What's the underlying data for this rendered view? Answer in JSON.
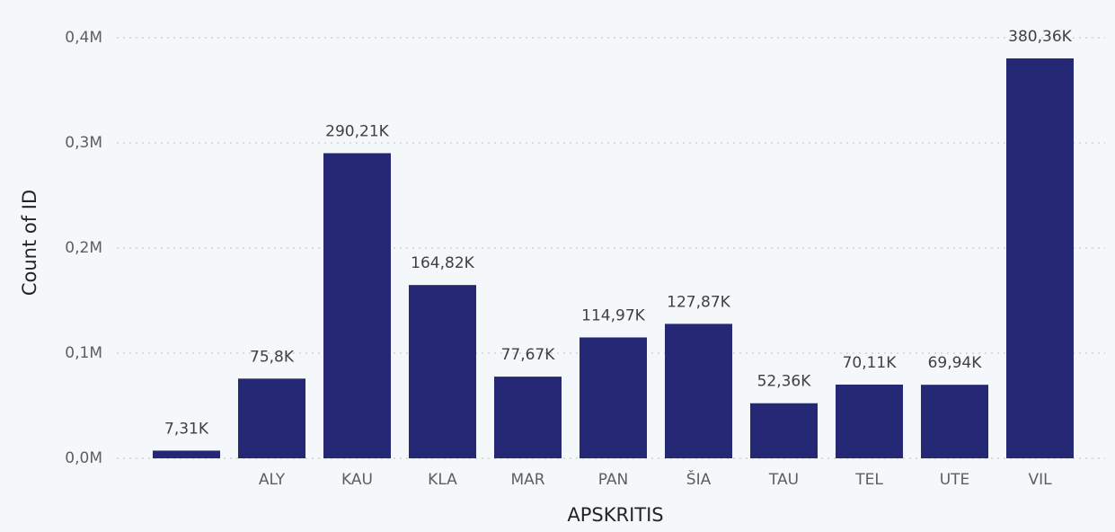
{
  "chart_data": {
    "type": "bar",
    "x_label": "APSKRITIS",
    "y_label": "Count of ID",
    "categories": [
      null,
      "ALY",
      "KAU",
      "KLA",
      "MAR",
      "PAN",
      "ŠIA",
      "TAU",
      "TEL",
      "UTE",
      "VIL"
    ],
    "values": [
      7310,
      75800,
      290210,
      164820,
      77670,
      114970,
      127870,
      52360,
      70110,
      69940,
      380360
    ],
    "value_labels": [
      "7,31K",
      "75,8K",
      "290,21K",
      "164,82K",
      "77,67K",
      "114,97K",
      "127,87K",
      "52,36K",
      "70,11K",
      "69,94K",
      "380,36K"
    ],
    "color": "#252874",
    "ylim": [
      0,
      400000
    ],
    "yticks": [
      {
        "value": 0,
        "label": "0,0M"
      },
      {
        "value": 100000,
        "label": "0,1M"
      },
      {
        "value": 200000,
        "label": "0,2M"
      },
      {
        "value": 300000,
        "label": "0,3M"
      },
      {
        "value": 400000,
        "label": "0,4M"
      }
    ],
    "grid": true
  }
}
